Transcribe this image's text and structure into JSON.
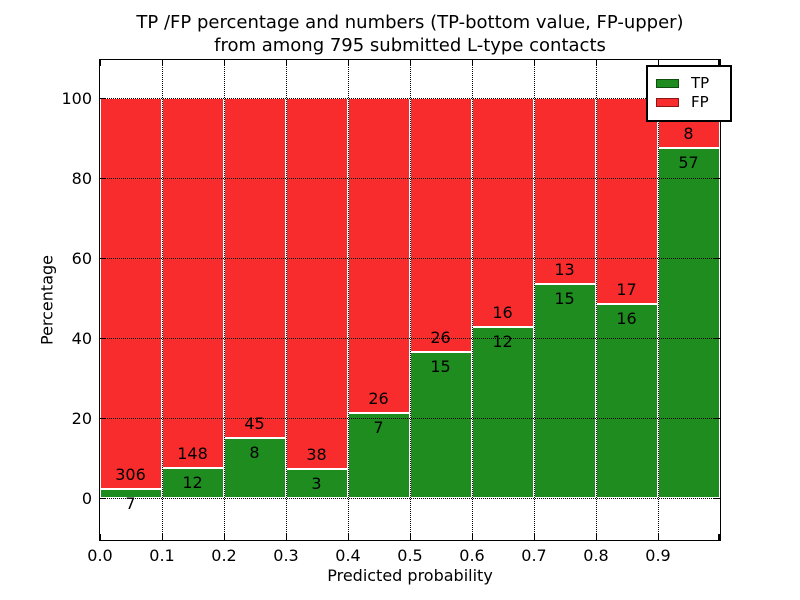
{
  "title": {
    "line1": "TP /FP percentage and numbers (TP-bottom value, FP-upper)",
    "line2": "from among 795 submitted L-type contacts"
  },
  "y_axis": {
    "label": "Percentage",
    "ticks": [
      0,
      20,
      40,
      60,
      80,
      100
    ]
  },
  "x_axis": {
    "label": "Predicted probability",
    "tick_labels": [
      "0.0",
      "0.1",
      "0.2",
      "0.3",
      "0.4",
      "0.5",
      "0.6",
      "0.7",
      "0.8",
      "0.9"
    ]
  },
  "legend": {
    "position": "upper right",
    "items": [
      {
        "label": "TP",
        "color": "#1f8c1f"
      },
      {
        "label": "FP",
        "color": "#f82c2c"
      }
    ]
  },
  "chart_data": {
    "type": "bar",
    "stacked": true,
    "normalized": "each bin stacked to 100%",
    "title": "TP /FP percentage and numbers (TP-bottom value, FP-upper) from among 795 submitted L-type contacts",
    "xlabel": "Predicted probability",
    "ylabel": "Percentage",
    "total_contacts": 795,
    "bin_starts": [
      0.0,
      0.1,
      0.2,
      0.3,
      0.4,
      0.5,
      0.6,
      0.7,
      0.8,
      0.9
    ],
    "bin_width": 0.1,
    "series": [
      {
        "name": "TP",
        "color": "#1f8c1f",
        "counts": [
          7,
          12,
          8,
          3,
          7,
          15,
          12,
          15,
          16,
          57
        ]
      },
      {
        "name": "FP",
        "color": "#f82c2c",
        "counts": [
          306,
          148,
          45,
          38,
          26,
          26,
          16,
          13,
          17,
          8
        ]
      }
    ],
    "tp_percent_heights": [
      2.2,
      7.5,
      15.1,
      7.3,
      21.2,
      36.6,
      42.9,
      53.6,
      48.5,
      87.7
    ],
    "xlim": [
      0.0,
      1.0
    ],
    "ylim": [
      -10.3,
      109.7
    ],
    "grid": "dotted, both axes, drawn over bars",
    "legend_position": "upper right"
  }
}
